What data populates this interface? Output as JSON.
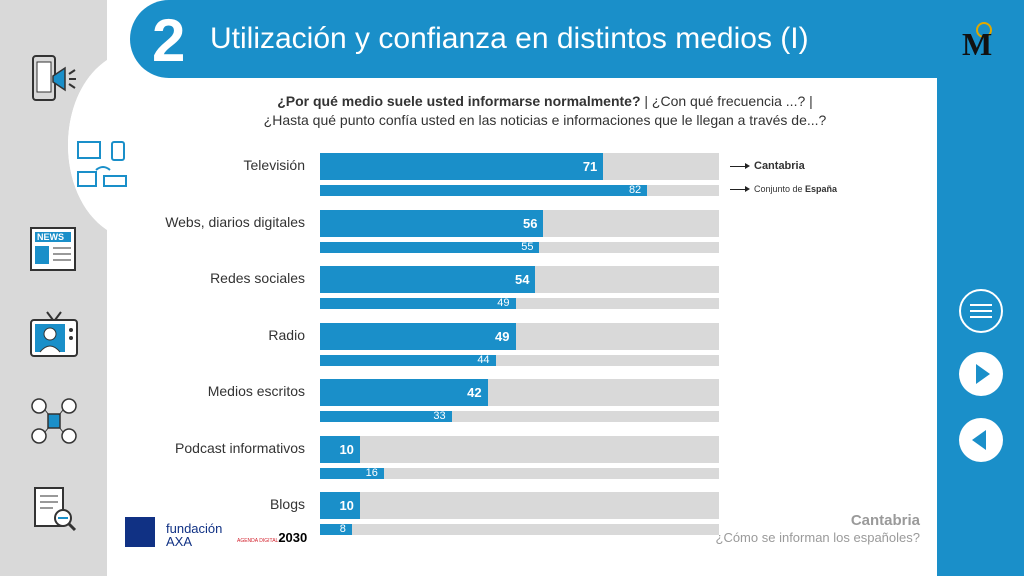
{
  "header": {
    "number": "2",
    "title": "Utilización y confianza en distintos medios (I)"
  },
  "question": {
    "bold": "¿Por qué medio suele usted informarse normalmente?",
    "rest": " | ¿Con qué frecuencia ...? |",
    "line2": "¿Hasta qué punto confía usted en las noticias e informaciones que le llegan a través de...?"
  },
  "legend": {
    "primary": "Cantabria",
    "secondary_prefix": "Conjunto de ",
    "secondary_bold": "España"
  },
  "chart_data": {
    "type": "bar",
    "orientation": "horizontal",
    "categories": [
      "Televisión",
      "Webs, diarios digitales",
      "Redes sociales",
      "Radio",
      "Medios escritos",
      "Podcast informativos",
      "Blogs"
    ],
    "series": [
      {
        "name": "Cantabria",
        "values": [
          71,
          56,
          54,
          49,
          42,
          10,
          10
        ]
      },
      {
        "name": "Conjunto de España",
        "values": [
          82,
          55,
          49,
          44,
          33,
          16,
          8
        ]
      }
    ],
    "xlim": [
      0,
      100
    ],
    "colors": {
      "bar": "#1a8fc9",
      "track": "#d9d9d9"
    }
  },
  "footer": {
    "region": "Cantabria",
    "subtitle": "¿Cómo se informan los españoles?",
    "fundacion": "fundación",
    "axa": "AXA",
    "agenda": "AGENDA DIGITAL",
    "year": "2030"
  },
  "nav": {
    "menu": "menu-icon",
    "next": "next-icon",
    "prev": "prev-icon"
  },
  "colors": {
    "accent": "#1a8fc9",
    "rail": "#d9d9d9"
  }
}
